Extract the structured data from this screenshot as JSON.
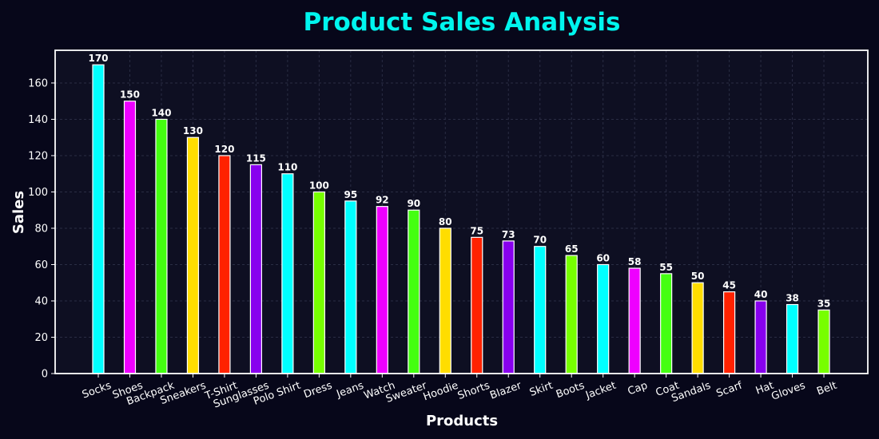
{
  "chart_data": {
    "type": "bar",
    "title": "Product Sales Analysis",
    "xlabel": "Products",
    "ylabel": "Sales",
    "categories": [
      "Socks",
      "Shoes",
      "Backpack",
      "Sneakers",
      "T-Shirt",
      "Sunglasses",
      "Polo Shirt",
      "Dress",
      "Jeans",
      "Watch",
      "Sweater",
      "Hoodie",
      "Shorts",
      "Blazer",
      "Skirt",
      "Boots",
      "Jacket",
      "Cap",
      "Coat",
      "Sandals",
      "Scarf",
      "Hat",
      "Gloves",
      "Belt"
    ],
    "values": [
      170,
      150,
      140,
      130,
      120,
      115,
      110,
      100,
      95,
      92,
      90,
      80,
      75,
      73,
      70,
      65,
      60,
      58,
      55,
      50,
      45,
      40,
      38,
      35
    ],
    "ylim": [
      0,
      178
    ],
    "yticks": [
      0,
      20,
      40,
      60,
      80,
      100,
      120,
      140,
      160
    ],
    "grid": true,
    "legend": "none",
    "colors": {
      "background": "#07071a",
      "plot_background": "#0e0f22",
      "title": "#00f5ee",
      "frame": "#ffffff",
      "bar_cycle": [
        "#00ffff",
        "#ee00ff",
        "#44ff11",
        "#ffdd00",
        "#ff2200",
        "#8800ee",
        "#00ffff",
        "#77ff00",
        "#00ffff",
        "#ee00ff",
        "#44ff11",
        "#ffdd00",
        "#ff2200",
        "#8800ee",
        "#00ffff",
        "#77ff00",
        "#00ffff",
        "#ee00ff",
        "#44ff11",
        "#ffdd00",
        "#ff2200",
        "#8800ee",
        "#00ffff",
        "#77ff00"
      ]
    }
  }
}
